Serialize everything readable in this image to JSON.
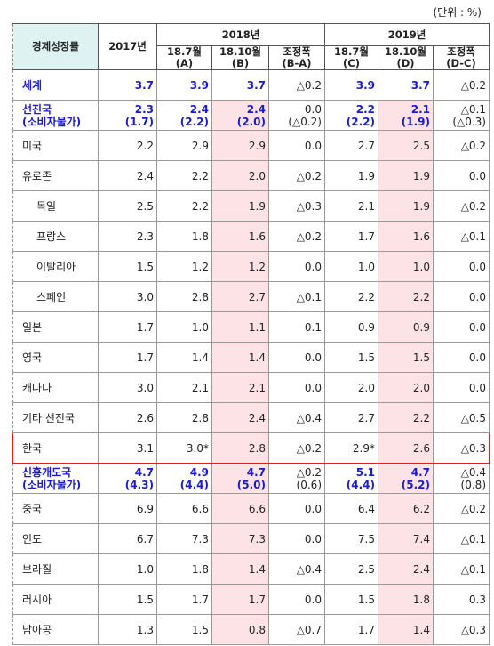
{
  "unit": "(단위 : %)",
  "header": {
    "title": "경제성장률",
    "year0": "2017년",
    "groups": [
      {
        "label": "2018년",
        "cols": [
          [
            "18.7월",
            "(A)"
          ],
          [
            "18.10월",
            "(B)"
          ],
          [
            "조정폭",
            "(B-A)"
          ]
        ]
      },
      {
        "label": "2019년",
        "cols": [
          [
            "18.7월",
            "(C)"
          ],
          [
            "18.10월",
            "(D)"
          ],
          [
            "조정폭",
            "(D-C)"
          ]
        ]
      }
    ]
  },
  "rows": [
    {
      "label": [
        "세계"
      ],
      "cells": [
        [
          "3.7"
        ],
        [
          "3.9"
        ],
        [
          "3.7"
        ],
        [
          "△0.2"
        ],
        [
          "3.9"
        ],
        [
          "3.7"
        ],
        [
          "△0.2"
        ]
      ]
    },
    {
      "label": [
        "선진국",
        "(소비자물가)"
      ],
      "cells": [
        [
          "2.3",
          "(1.7)"
        ],
        [
          "2.4",
          "(2.2)"
        ],
        [
          "2.4",
          "(2.0)"
        ],
        [
          "0.0",
          "(△0.2)"
        ],
        [
          "2.2",
          "(2.2)"
        ],
        [
          "2.1",
          "(1.9)"
        ],
        [
          "△0.1",
          "(△0.3)"
        ]
      ]
    },
    {
      "label": [
        "미국"
      ],
      "cells": [
        [
          "2.2"
        ],
        [
          "2.9"
        ],
        [
          "2.9"
        ],
        [
          "0.0"
        ],
        [
          "2.7"
        ],
        [
          "2.5"
        ],
        [
          "△0.2"
        ]
      ]
    },
    {
      "label": [
        "유로존"
      ],
      "cells": [
        [
          "2.4"
        ],
        [
          "2.2"
        ],
        [
          "2.0"
        ],
        [
          "△0.2"
        ],
        [
          "1.9"
        ],
        [
          "1.9"
        ],
        [
          "0.0"
        ]
      ]
    },
    {
      "label": [
        "독일"
      ],
      "cells": [
        [
          "2.5"
        ],
        [
          "2.2"
        ],
        [
          "1.9"
        ],
        [
          "△0.3"
        ],
        [
          "2.1"
        ],
        [
          "1.9"
        ],
        [
          "△0.2"
        ]
      ]
    },
    {
      "label": [
        "프랑스"
      ],
      "cells": [
        [
          "2.3"
        ],
        [
          "1.8"
        ],
        [
          "1.6"
        ],
        [
          "△0.2"
        ],
        [
          "1.7"
        ],
        [
          "1.6"
        ],
        [
          "△0.1"
        ]
      ]
    },
    {
      "label": [
        "이탈리아"
      ],
      "cells": [
        [
          "1.5"
        ],
        [
          "1.2"
        ],
        [
          "1.2"
        ],
        [
          "0.0"
        ],
        [
          "1.0"
        ],
        [
          "1.0"
        ],
        [
          "0.0"
        ]
      ]
    },
    {
      "label": [
        "스페인"
      ],
      "cells": [
        [
          "3.0"
        ],
        [
          "2.8"
        ],
        [
          "2.7"
        ],
        [
          "△0.1"
        ],
        [
          "2.2"
        ],
        [
          "2.2"
        ],
        [
          "0.0"
        ]
      ]
    },
    {
      "label": [
        "일본"
      ],
      "cells": [
        [
          "1.7"
        ],
        [
          "1.0"
        ],
        [
          "1.1"
        ],
        [
          "0.1"
        ],
        [
          "0.9"
        ],
        [
          "0.9"
        ],
        [
          "0.0"
        ]
      ]
    },
    {
      "label": [
        "영국"
      ],
      "cells": [
        [
          "1.7"
        ],
        [
          "1.4"
        ],
        [
          "1.4"
        ],
        [
          "0.0"
        ],
        [
          "1.5"
        ],
        [
          "1.5"
        ],
        [
          "0.0"
        ]
      ]
    },
    {
      "label": [
        "캐나다"
      ],
      "cells": [
        [
          "3.0"
        ],
        [
          "2.1"
        ],
        [
          "2.1"
        ],
        [
          "0.0"
        ],
        [
          "2.0"
        ],
        [
          "2.0"
        ],
        [
          "0.0"
        ]
      ]
    },
    {
      "label": [
        "기타 선진국"
      ],
      "cells": [
        [
          "2.6"
        ],
        [
          "2.8"
        ],
        [
          "2.4"
        ],
        [
          "△0.4"
        ],
        [
          "2.7"
        ],
        [
          "2.2"
        ],
        [
          "△0.5"
        ]
      ]
    },
    {
      "label": [
        "한국"
      ],
      "cells": [
        [
          "3.1"
        ],
        [
          "3.0*"
        ],
        [
          "2.8"
        ],
        [
          "△0.2"
        ],
        [
          "2.9*"
        ],
        [
          "2.6"
        ],
        [
          "△0.3"
        ]
      ]
    },
    {
      "label": [
        "신흥개도국",
        "(소비자물가)"
      ],
      "cells": [
        [
          "4.7",
          "(4.3)"
        ],
        [
          "4.9",
          "(4.4)"
        ],
        [
          "4.7",
          "(5.0)"
        ],
        [
          "△0.2",
          "(0.6)"
        ],
        [
          "5.1",
          "(4.4)"
        ],
        [
          "4.7",
          "(5.2)"
        ],
        [
          "△0.4",
          "(0.8)"
        ]
      ]
    },
    {
      "label": [
        "중국"
      ],
      "cells": [
        [
          "6.9"
        ],
        [
          "6.6"
        ],
        [
          "6.6"
        ],
        [
          "0.0"
        ],
        [
          "6.4"
        ],
        [
          "6.2"
        ],
        [
          "△0.2"
        ]
      ]
    },
    {
      "label": [
        "인도"
      ],
      "cells": [
        [
          "6.7"
        ],
        [
          "7.3"
        ],
        [
          "7.3"
        ],
        [
          "0.0"
        ],
        [
          "7.5"
        ],
        [
          "7.4"
        ],
        [
          "△0.1"
        ]
      ]
    },
    {
      "label": [
        "브라질"
      ],
      "cells": [
        [
          "1.0"
        ],
        [
          "1.8"
        ],
        [
          "1.4"
        ],
        [
          "△0.4"
        ],
        [
          "2.5"
        ],
        [
          "2.4"
        ],
        [
          "△0.1"
        ]
      ]
    },
    {
      "label": [
        "러시아"
      ],
      "cells": [
        [
          "1.5"
        ],
        [
          "1.7"
        ],
        [
          "1.7"
        ],
        [
          "0.0"
        ],
        [
          "1.5"
        ],
        [
          "1.8"
        ],
        [
          "0.3"
        ]
      ]
    },
    {
      "label": [
        "남아공"
      ],
      "cells": [
        [
          "1.3"
        ],
        [
          "1.5"
        ],
        [
          "0.8"
        ],
        [
          "△0.7"
        ],
        [
          "1.7"
        ],
        [
          "1.4"
        ],
        [
          "△0.3"
        ]
      ]
    }
  ]
}
